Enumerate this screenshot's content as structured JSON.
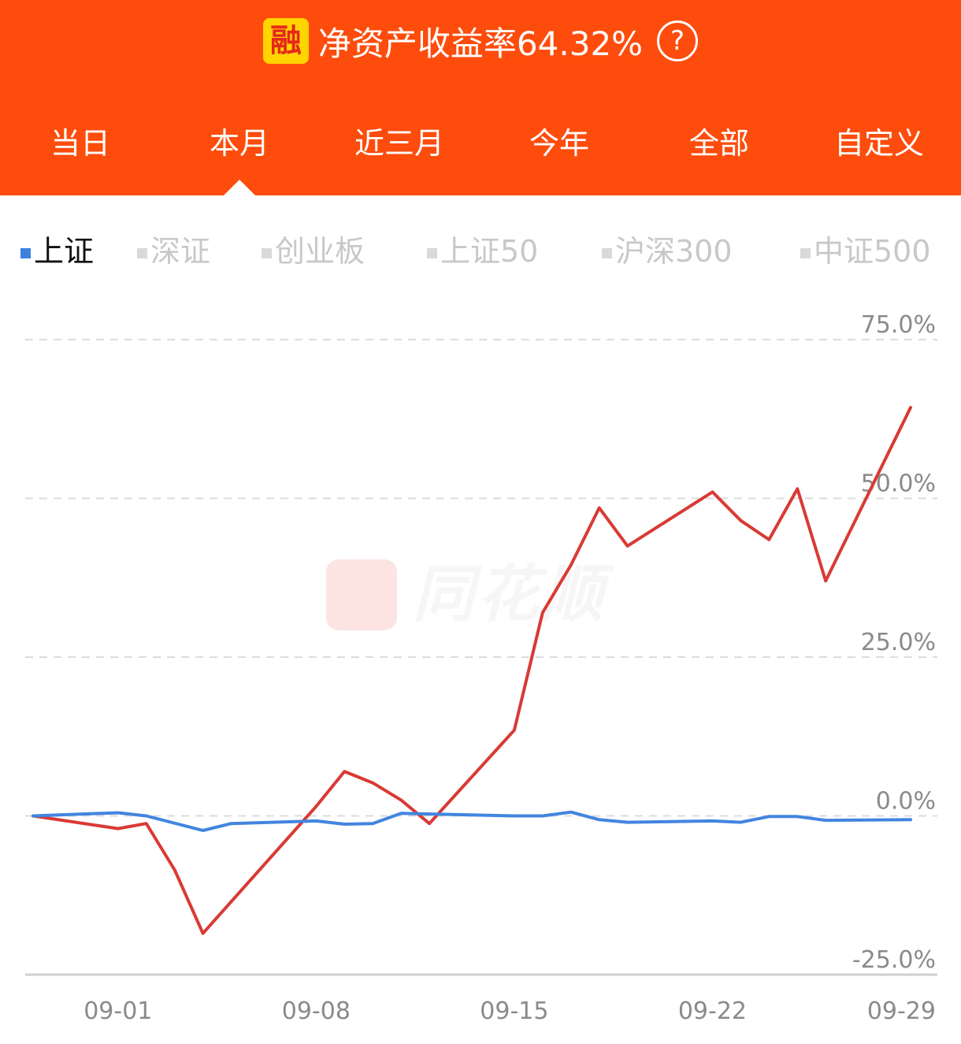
{
  "header": {
    "badge": "融",
    "title": "净资产收益率64.32%",
    "help_icon": "question-circle-icon"
  },
  "tabs": [
    {
      "label": "当日",
      "active": false
    },
    {
      "label": "本月",
      "active": true
    },
    {
      "label": "近三月",
      "active": false
    },
    {
      "label": "今年",
      "active": false
    },
    {
      "label": "全部",
      "active": false
    },
    {
      "label": "自定义",
      "active": false
    }
  ],
  "legend": [
    {
      "label": "上证",
      "active": true
    },
    {
      "label": "深证",
      "active": false
    },
    {
      "label": "创业板",
      "active": false
    },
    {
      "label": "上证50",
      "active": false
    },
    {
      "label": "沪深300",
      "active": false
    },
    {
      "label": "中证500",
      "active": false
    }
  ],
  "watermark": {
    "text": "同花顺"
  },
  "colors": {
    "header_bg": "#fd4c0b",
    "account_line": "#d93a35",
    "index_line": "#4285e0",
    "grid": "#dcdcdc",
    "axis_text": "#8a8a8a"
  },
  "chart_data": {
    "type": "line",
    "ylim": [
      -25,
      75
    ],
    "y_ticks": [
      "75.0%",
      "50.0%",
      "25.0%",
      "0.0%",
      "-25.0%"
    ],
    "y_tick_values": [
      75,
      50,
      25,
      0,
      -25
    ],
    "x_ticks": [
      {
        "label": "09-01",
        "index": 3
      },
      {
        "label": "09-08",
        "index": 10
      },
      {
        "label": "09-15",
        "index": 17
      },
      {
        "label": "09-22",
        "index": 24
      },
      {
        "label": "09-29",
        "index": 31
      }
    ],
    "x_count": 32,
    "grid": true,
    "series": [
      {
        "color": "#d93a35",
        "points": [
          [
            0,
            0
          ],
          [
            3,
            -2
          ],
          [
            4,
            -1.2
          ],
          [
            5,
            -8.5
          ],
          [
            6,
            -18.5
          ],
          [
            10,
            1.5
          ],
          [
            11,
            7
          ],
          [
            12,
            5.2
          ],
          [
            13,
            2.5
          ],
          [
            14,
            -1.2
          ],
          [
            17,
            13.5
          ],
          [
            18,
            32
          ],
          [
            19,
            39.5
          ],
          [
            20,
            48.5
          ],
          [
            21,
            42.5
          ],
          [
            24,
            51
          ],
          [
            25,
            46.5
          ],
          [
            26,
            43.5
          ],
          [
            27,
            51.5
          ],
          [
            28,
            37
          ],
          [
            31,
            64.3
          ]
        ]
      },
      {
        "color": "#4285e0",
        "points": [
          [
            0,
            0
          ],
          [
            3,
            0.5
          ],
          [
            4,
            0
          ],
          [
            6,
            -2.3
          ],
          [
            7,
            -1.2
          ],
          [
            10,
            -0.8
          ],
          [
            11,
            -1.3
          ],
          [
            12,
            -1.2
          ],
          [
            13,
            0.4
          ],
          [
            17,
            0
          ],
          [
            18,
            0
          ],
          [
            19,
            0.6
          ],
          [
            20,
            -0.6
          ],
          [
            21,
            -1
          ],
          [
            24,
            -0.8
          ],
          [
            25,
            -1
          ],
          [
            26,
            -0.1
          ],
          [
            27,
            -0.1
          ],
          [
            28,
            -0.7
          ],
          [
            31,
            -0.6
          ]
        ]
      }
    ]
  }
}
